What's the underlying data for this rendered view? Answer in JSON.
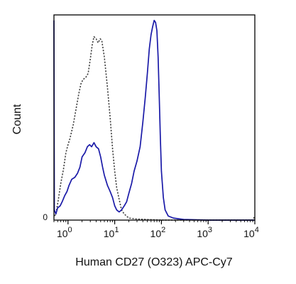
{
  "chart_data": {
    "type": "line",
    "title": "",
    "xlabel": "Human CD27 (O323) APC-Cy7",
    "ylabel": "Count",
    "x_scale": "log",
    "xlim": [
      0.5,
      10000
    ],
    "ylim": [
      0,
      1
    ],
    "grid": false,
    "legend": "none",
    "x_ticks": [
      {
        "value": 1,
        "base": "10",
        "exp": "0"
      },
      {
        "value": 10,
        "base": "10",
        "exp": "1"
      },
      {
        "value": 100,
        "base": "10",
        "exp": "2"
      },
      {
        "value": 1000,
        "base": "10",
        "exp": "3"
      },
      {
        "value": 10000,
        "base": "10",
        "exp": "4"
      }
    ],
    "y_ticks": [
      {
        "value": 0,
        "label": "0"
      }
    ],
    "series": [
      {
        "style": "dashed",
        "color": "#444444",
        "points": [
          [
            0.52,
            0.02
          ],
          [
            0.56,
            0.04
          ],
          [
            0.62,
            0.1
          ],
          [
            0.7,
            0.18
          ],
          [
            0.8,
            0.25
          ],
          [
            0.9,
            0.33
          ],
          [
            1.0,
            0.37
          ],
          [
            1.1,
            0.4
          ],
          [
            1.3,
            0.47
          ],
          [
            1.5,
            0.55
          ],
          [
            1.7,
            0.62
          ],
          [
            1.9,
            0.67
          ],
          [
            2.1,
            0.69
          ],
          [
            2.4,
            0.7
          ],
          [
            2.7,
            0.72
          ],
          [
            3.0,
            0.79
          ],
          [
            3.3,
            0.86
          ],
          [
            3.6,
            0.9
          ],
          [
            4.0,
            0.89
          ],
          [
            4.4,
            0.87
          ],
          [
            4.9,
            0.89
          ],
          [
            5.3,
            0.88
          ],
          [
            6.0,
            0.8
          ],
          [
            7.0,
            0.65
          ],
          [
            8.0,
            0.5
          ],
          [
            9.0,
            0.35
          ],
          [
            10.0,
            0.24
          ],
          [
            11.0,
            0.16
          ],
          [
            12.5,
            0.1
          ],
          [
            14.0,
            0.05
          ],
          [
            16.0,
            0.03
          ],
          [
            20.0,
            0.01
          ],
          [
            30.0,
            0.005
          ],
          [
            100.0,
            0.0
          ],
          [
            1000.0,
            0.0
          ],
          [
            9000.0,
            0.0
          ],
          [
            10000.0,
            0.02
          ]
        ]
      },
      {
        "style": "solid",
        "color": "#1a1aa8",
        "points": [
          [
            0.5,
            0.98
          ],
          [
            0.51,
            0.05
          ],
          [
            0.55,
            0.03
          ],
          [
            0.6,
            0.06
          ],
          [
            0.68,
            0.07
          ],
          [
            0.75,
            0.09
          ],
          [
            0.85,
            0.12
          ],
          [
            0.95,
            0.14
          ],
          [
            1.05,
            0.17
          ],
          [
            1.2,
            0.2
          ],
          [
            1.4,
            0.21
          ],
          [
            1.6,
            0.23
          ],
          [
            1.8,
            0.26
          ],
          [
            2.0,
            0.31
          ],
          [
            2.3,
            0.33
          ],
          [
            2.6,
            0.36
          ],
          [
            2.9,
            0.37
          ],
          [
            3.2,
            0.36
          ],
          [
            3.6,
            0.38
          ],
          [
            4.0,
            0.36
          ],
          [
            4.5,
            0.35
          ],
          [
            5.0,
            0.31
          ],
          [
            5.5,
            0.26
          ],
          [
            6.0,
            0.22
          ],
          [
            7.0,
            0.17
          ],
          [
            8.0,
            0.14
          ],
          [
            9.0,
            0.11
          ],
          [
            10.0,
            0.07
          ],
          [
            11.0,
            0.05
          ],
          [
            12.5,
            0.04
          ],
          [
            14.0,
            0.05
          ],
          [
            16.0,
            0.07
          ],
          [
            18.0,
            0.09
          ],
          [
            20.0,
            0.13
          ],
          [
            23.0,
            0.18
          ],
          [
            26.0,
            0.24
          ],
          [
            30.0,
            0.29
          ],
          [
            35.0,
            0.36
          ],
          [
            40.0,
            0.48
          ],
          [
            45.0,
            0.6
          ],
          [
            50.0,
            0.72
          ],
          [
            55.0,
            0.84
          ],
          [
            60.0,
            0.91
          ],
          [
            65.0,
            0.95
          ],
          [
            70.0,
            0.98
          ],
          [
            75.0,
            0.97
          ],
          [
            80.0,
            0.93
          ],
          [
            85.0,
            0.8
          ],
          [
            90.0,
            0.6
          ],
          [
            95.0,
            0.4
          ],
          [
            100.0,
            0.24
          ],
          [
            110.0,
            0.11
          ],
          [
            120.0,
            0.05
          ],
          [
            140.0,
            0.02
          ],
          [
            180.0,
            0.01
          ],
          [
            300.0,
            0.003
          ],
          [
            1000.0,
            0.0
          ],
          [
            10000.0,
            0.0
          ]
        ]
      }
    ]
  }
}
